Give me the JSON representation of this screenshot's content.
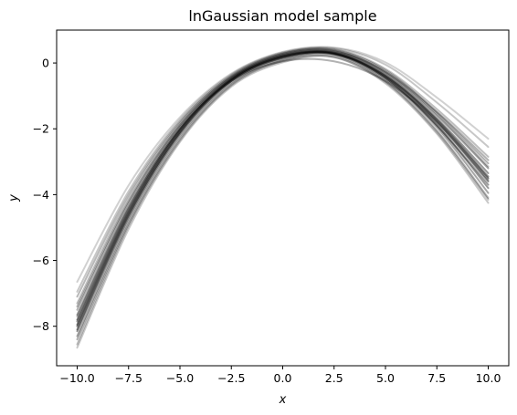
{
  "chart_data": {
    "type": "line",
    "title": "lnGaussian model sample",
    "xlabel": "x",
    "ylabel": "y",
    "xlim": [
      -11.0,
      11.0
    ],
    "ylim": [
      -9.2,
      1.0
    ],
    "xticks": [
      -10.0,
      -7.5,
      -5.0,
      -2.5,
      0.0,
      2.5,
      5.0,
      7.5,
      10.0
    ],
    "xtick_labels": [
      "−10.0",
      "−7.5",
      "−5.0",
      "−2.5",
      "0.0",
      "2.5",
      "5.0",
      "7.5",
      "10.0"
    ],
    "yticks": [
      0,
      -2,
      -4,
      -6,
      -8
    ],
    "ytick_labels": [
      "0",
      "−2",
      "−4",
      "−6",
      "−8"
    ],
    "grid": false,
    "legend": "none",
    "line_color": "#000000",
    "x": [
      -10.0,
      -7.5,
      -5.0,
      -2.5,
      0.0,
      2.5,
      5.0,
      7.5,
      10.0
    ],
    "series": [
      {
        "values": [
          -7.95,
          -4.55,
          -2.05,
          -0.5,
          0.2,
          0.3,
          -0.4,
          -1.75,
          -3.5
        ],
        "opacity": 0.45
      },
      {
        "values": [
          -8.0,
          -4.6,
          -2.1,
          -0.52,
          0.18,
          0.28,
          -0.42,
          -1.8,
          -3.6
        ],
        "opacity": 0.45
      },
      {
        "values": [
          -7.8,
          -4.45,
          -2.0,
          -0.48,
          0.22,
          0.32,
          -0.35,
          -1.68,
          -3.35
        ],
        "opacity": 0.4
      },
      {
        "values": [
          -8.15,
          -4.7,
          -2.15,
          -0.55,
          0.17,
          0.29,
          -0.45,
          -1.88,
          -3.8
        ],
        "opacity": 0.4
      },
      {
        "values": [
          -7.65,
          -4.35,
          -1.95,
          -0.45,
          0.25,
          0.36,
          -0.3,
          -1.6,
          -3.2
        ],
        "opacity": 0.35
      },
      {
        "values": [
          -8.3,
          -4.8,
          -2.22,
          -0.6,
          0.12,
          0.26,
          -0.5,
          -1.95,
          -3.95
        ],
        "opacity": 0.35
      },
      {
        "values": [
          -7.5,
          -4.25,
          -1.9,
          -0.42,
          0.28,
          0.4,
          -0.22,
          -1.5,
          -3.05
        ],
        "opacity": 0.3
      },
      {
        "values": [
          -8.4,
          -4.9,
          -2.3,
          -0.65,
          0.08,
          0.22,
          -0.55,
          -2.05,
          -4.1
        ],
        "opacity": 0.3
      },
      {
        "values": [
          -7.3,
          -4.1,
          -1.82,
          -0.38,
          0.3,
          0.42,
          -0.18,
          -1.4,
          -2.85
        ],
        "opacity": 0.25
      },
      {
        "values": [
          -8.65,
          -5.05,
          -2.4,
          -0.72,
          0.02,
          0.17,
          -0.62,
          -2.15,
          -4.25
        ],
        "opacity": 0.22
      },
      {
        "values": [
          -6.95,
          -3.9,
          -1.72,
          -0.35,
          0.32,
          0.45,
          -0.05,
          -1.2,
          -2.55
        ],
        "opacity": 0.22
      },
      {
        "values": [
          -6.65,
          -3.72,
          -1.65,
          -0.32,
          0.34,
          0.47,
          0.02,
          -1.05,
          -2.3
        ],
        "opacity": 0.18
      },
      {
        "values": [
          -7.7,
          -4.4,
          -2.0,
          -0.55,
          0.05,
          0.05,
          -0.55,
          -1.8,
          -3.55
        ],
        "opacity": 0.3
      },
      {
        "values": [
          -7.1,
          -4.0,
          -1.78,
          -0.4,
          0.28,
          0.38,
          -0.28,
          -1.55,
          -3.15
        ],
        "opacity": 0.28
      },
      {
        "values": [
          -8.55,
          -4.95,
          -2.35,
          -0.68,
          0.06,
          0.18,
          -0.58,
          -2.1,
          -4.15
        ],
        "opacity": 0.25
      },
      {
        "values": [
          -7.4,
          -4.2,
          -1.88,
          -0.44,
          0.24,
          0.35,
          -0.26,
          -1.48,
          -2.95
        ],
        "opacity": 0.3
      },
      {
        "values": [
          -8.1,
          -4.65,
          -2.12,
          -0.54,
          0.15,
          0.27,
          -0.46,
          -1.9,
          -3.7
        ],
        "opacity": 0.4
      },
      {
        "values": [
          -7.85,
          -4.5,
          -2.03,
          -0.49,
          0.21,
          0.31,
          -0.38,
          -1.72,
          -3.45
        ],
        "opacity": 0.4
      }
    ]
  }
}
